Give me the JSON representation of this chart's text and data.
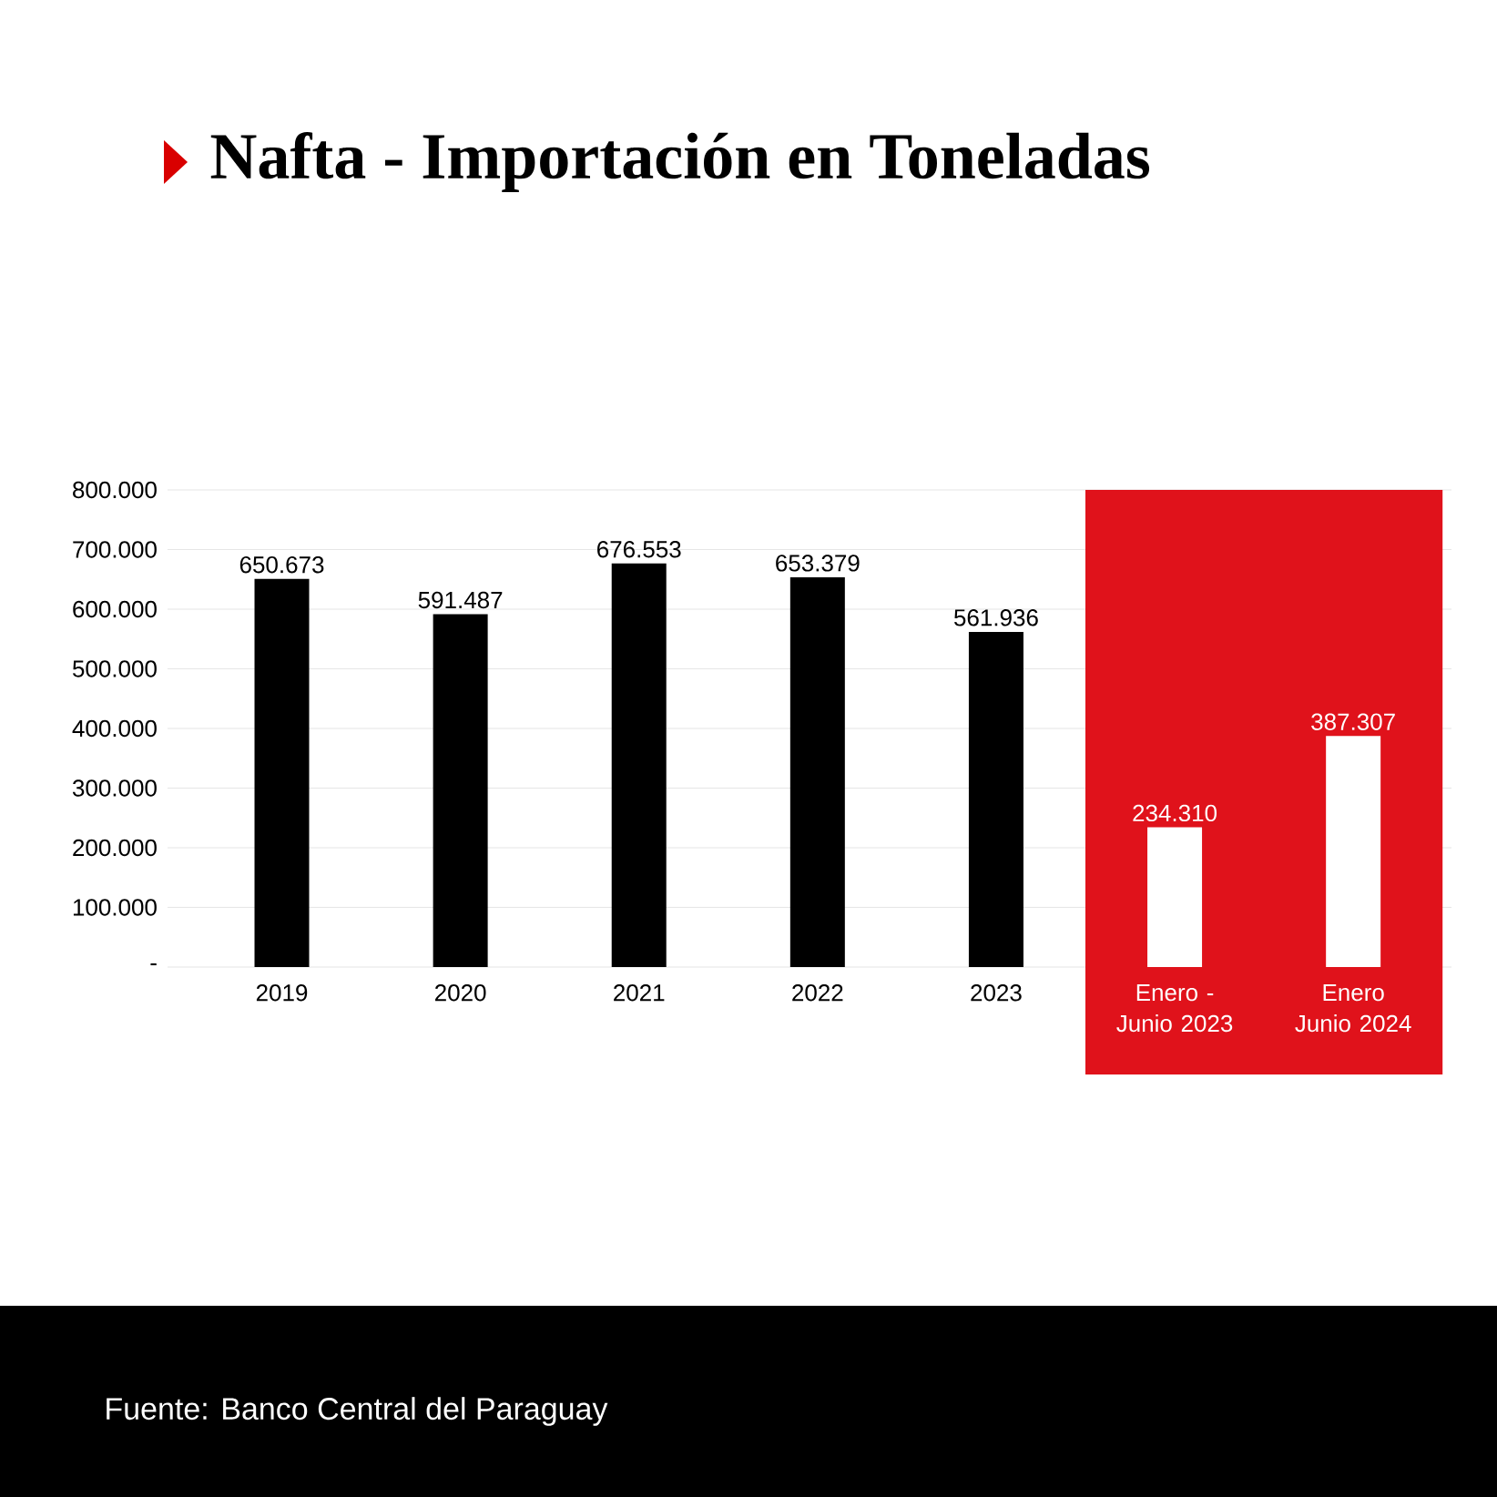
{
  "chart_data": {
    "type": "bar",
    "title": "Nafta - Importación en Toneladas",
    "categories": [
      "2019",
      "2020",
      "2021",
      "2022",
      "2023",
      "Enero - Junio 2023",
      "Enero Junio 2024"
    ],
    "values": [
      650673,
      591487,
      676553,
      653379,
      561936,
      234310,
      387307
    ],
    "colors": [
      "#000000",
      "#000000",
      "#000000",
      "#000000",
      "#000000",
      "#ffffff",
      "#ffffff"
    ],
    "value_labels": [
      "650.673",
      "591.487",
      "676.553",
      "653.379",
      "561.936",
      "234.310",
      "387.307"
    ],
    "ylim": [
      0,
      800000
    ],
    "yticks": [
      {
        "value": 0,
        "label": "-"
      },
      {
        "value": 100000,
        "label": "100.000"
      },
      {
        "value": 200000,
        "label": "200.000"
      },
      {
        "value": 300000,
        "label": "300.000"
      },
      {
        "value": 400000,
        "label": "400.000"
      },
      {
        "value": 500000,
        "label": "500.000"
      },
      {
        "value": 600000,
        "label": "600.000"
      },
      {
        "value": 700000,
        "label": "700.000"
      },
      {
        "value": 800000,
        "label": "800.000"
      }
    ],
    "grid": "y",
    "bands": [
      {
        "axis": "x",
        "from": "Enero - Junio 2023",
        "to": "Enero Junio 2024",
        "color": "#e0121b"
      }
    ],
    "annotations": [
      "Fuente: Banco Central del Paraguay"
    ]
  }
}
